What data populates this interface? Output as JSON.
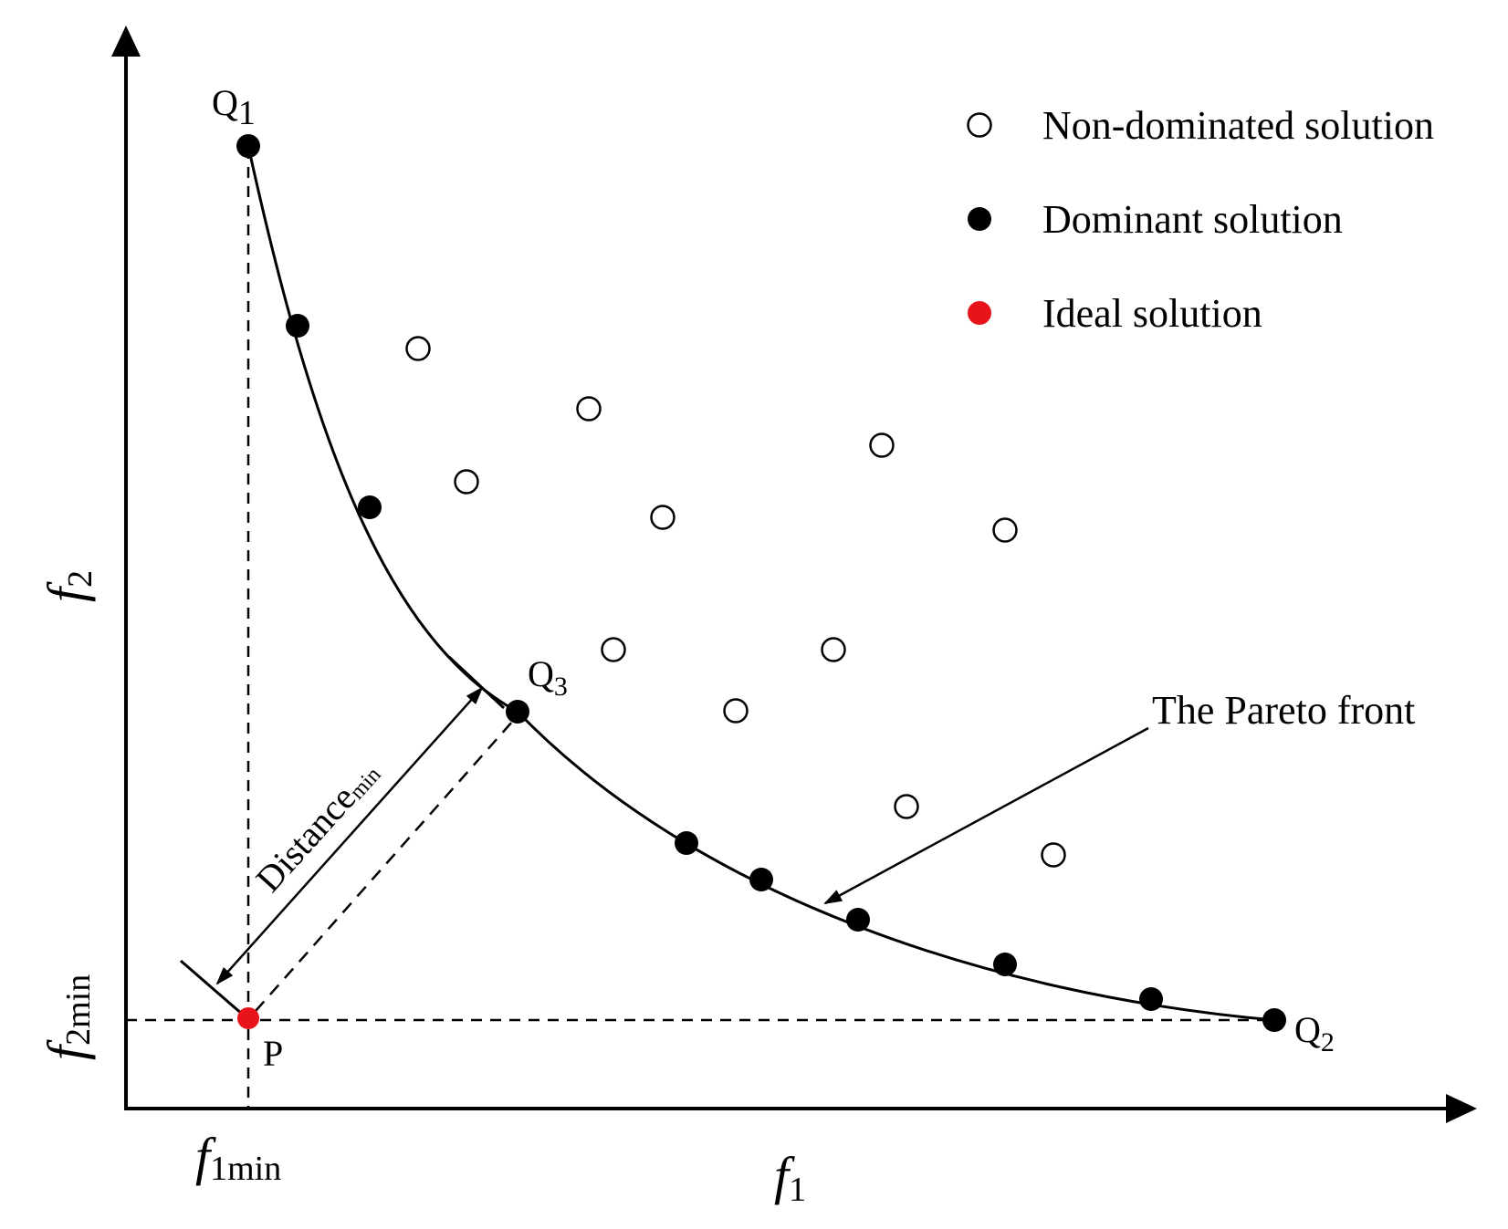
{
  "axes": {
    "x_label": "f",
    "x_label_sub": "1",
    "y_label": "f",
    "y_label_sub": "2",
    "x_min_label": "f",
    "x_min_sub": "1min",
    "y_min_label": "f",
    "y_min_sub": "2min"
  },
  "legend": {
    "items": [
      {
        "label": "Non-dominated solution",
        "marker": "open-circle"
      },
      {
        "label": "Dominant solution",
        "marker": "filled-circle"
      },
      {
        "label": "Ideal solution",
        "marker": "red-circle"
      }
    ]
  },
  "points": {
    "q1": {
      "letter": "Q",
      "sub": "1"
    },
    "q2": {
      "letter": "Q",
      "sub": "2"
    },
    "q3": {
      "letter": "Q",
      "sub": "3"
    },
    "p": {
      "letter": "P"
    }
  },
  "annotations": {
    "pareto_front": "The Pareto front",
    "distance_main": "Distance",
    "distance_sub": "min"
  },
  "colors": {
    "ideal": "#e8141b",
    "ink": "#000000",
    "paper": "#ffffff"
  }
}
